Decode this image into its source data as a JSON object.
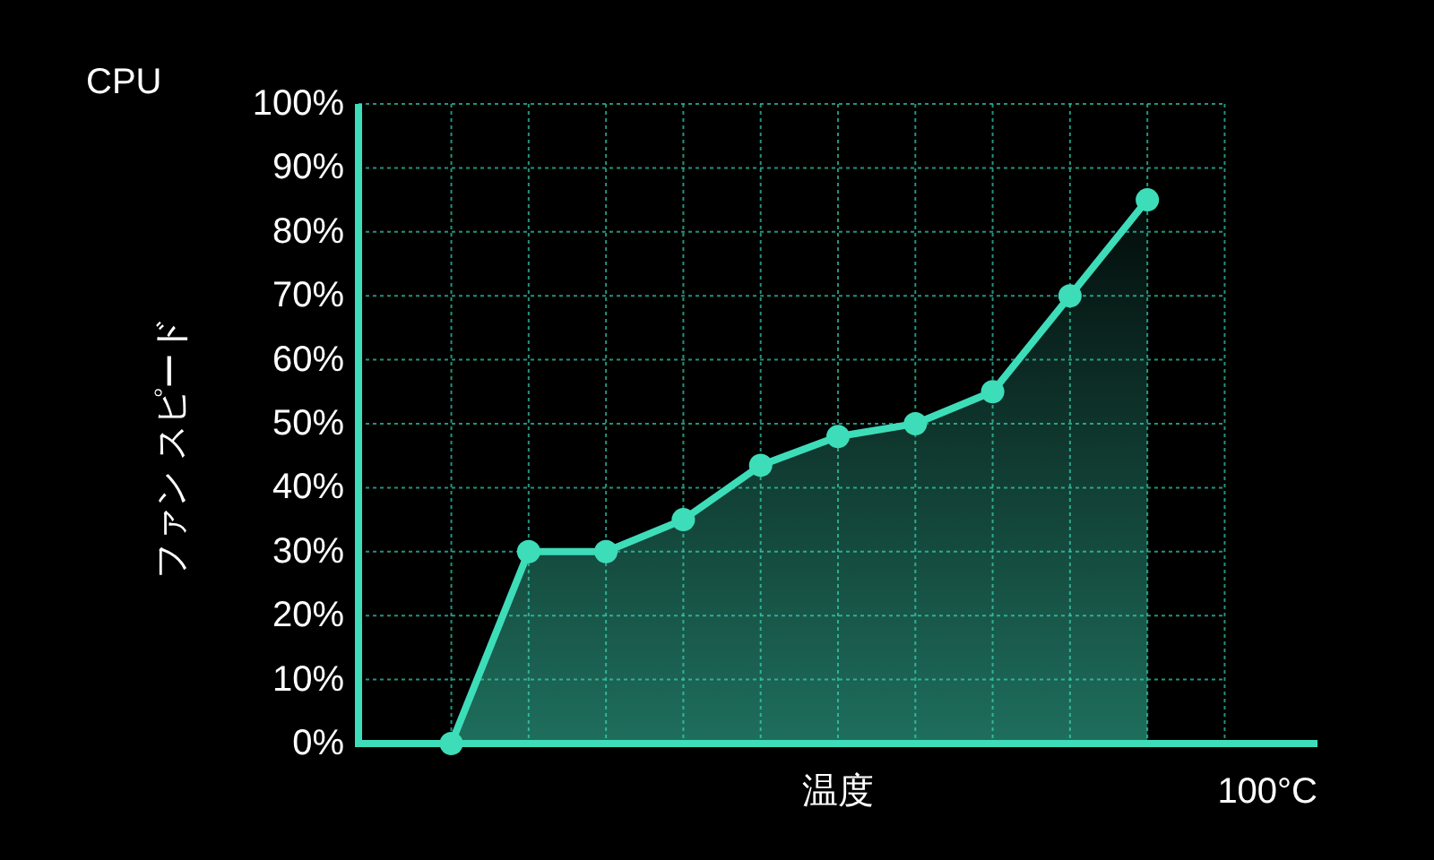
{
  "chart_data": {
    "type": "area",
    "title": "CPU",
    "xlabel": "温度",
    "ylabel": "ファン スピード",
    "categories": [
      null,
      null,
      null,
      null,
      null,
      null,
      null,
      null,
      null,
      null
    ],
    "series": [
      {
        "color": "#3dddb9",
        "values": [
          0,
          30,
          30,
          35,
          43.5,
          48,
          50,
          55,
          70,
          85
        ]
      }
    ],
    "ylim": [
      0,
      100
    ],
    "yticks": [
      {
        "value": 0,
        "label": "0%"
      },
      {
        "value": 10,
        "label": "10%"
      },
      {
        "value": 20,
        "label": "20%"
      },
      {
        "value": 30,
        "label": "30%"
      },
      {
        "value": 40,
        "label": "40%"
      },
      {
        "value": 50,
        "label": "50%"
      },
      {
        "value": 60,
        "label": "60%"
      },
      {
        "value": 70,
        "label": "70%"
      },
      {
        "value": 80,
        "label": "80%"
      },
      {
        "value": 90,
        "label": "90%"
      },
      {
        "value": 100,
        "label": "100%"
      }
    ],
    "annotations": [
      "100°C"
    ],
    "grid": true,
    "marker": "circle",
    "line_style": "solid"
  }
}
